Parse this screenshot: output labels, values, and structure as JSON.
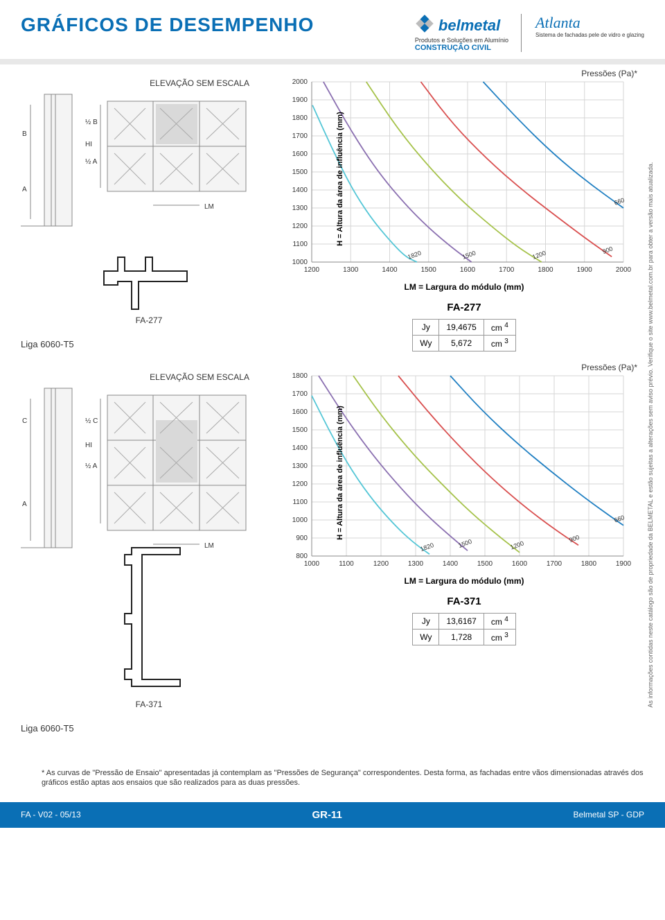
{
  "header": {
    "title": "GRÁFICOS DE DESEMPENHO",
    "belmetal": {
      "main": "belmetal",
      "sub1": "Produtos e Soluções em Alumínio",
      "sub2": "CONSTRUÇÃO CIVIL"
    },
    "atlanta": {
      "main": "Atlanta",
      "sub": "Sistema de fachadas pele de vidro e glazing"
    }
  },
  "colors": {
    "brand": "#0a6fb5",
    "grid": "#d5d5d5",
    "axis_text": "#333333",
    "curves": {
      "c1820": "#54c6d6",
      "c1500": "#8a6fb0",
      "c1200": "#a5c249",
      "c900": "#d94f4f",
      "c660": "#1f7fc2"
    }
  },
  "liga_label": "Liga 6060-T5",
  "elev_label": "ELEVAÇÃO SEM ESCALA",
  "dim_labels": {
    "A": "A",
    "B": "B",
    "C": "C",
    "halfA": "½ A",
    "halfB": "½ B",
    "halfC": "½ C",
    "HI": "HI",
    "LM": "LM"
  },
  "section1": {
    "profile_code": "FA-277",
    "chart": {
      "title_y": "H = Altura da área de influência (mm)",
      "title_x": "LM = Largura do módulo (mm)",
      "pressoes": "Pressões (Pa)*",
      "x": {
        "min": 1200,
        "max": 2000,
        "step": 100
      },
      "y": {
        "min": 1000,
        "max": 2000,
        "step": 100
      },
      "curves": [
        {
          "label": "1820",
          "color_key": "c1820",
          "segments": [
            [
              1202,
              1870
            ],
            [
              1250,
              1640
            ],
            [
              1300,
              1420
            ],
            [
              1350,
              1250
            ],
            [
              1400,
              1120
            ],
            [
              1440,
              1030
            ],
            [
              1470,
              1000
            ]
          ]
        },
        {
          "label": "1500",
          "color_key": "c1500",
          "segments": [
            [
              1230,
              2000
            ],
            [
              1300,
              1730
            ],
            [
              1370,
              1500
            ],
            [
              1440,
              1320
            ],
            [
              1500,
              1190
            ],
            [
              1560,
              1080
            ],
            [
              1610,
              1000
            ]
          ]
        },
        {
          "label": "1200",
          "color_key": "c1200",
          "segments": [
            [
              1340,
              2000
            ],
            [
              1420,
              1740
            ],
            [
              1500,
              1530
            ],
            [
              1580,
              1350
            ],
            [
              1660,
              1200
            ],
            [
              1730,
              1080
            ],
            [
              1790,
              1000
            ]
          ]
        },
        {
          "label": "900",
          "color_key": "c900",
          "segments": [
            [
              1480,
              2000
            ],
            [
              1560,
              1770
            ],
            [
              1650,
              1570
            ],
            [
              1740,
              1400
            ],
            [
              1830,
              1250
            ],
            [
              1910,
              1120
            ],
            [
              1970,
              1030
            ]
          ]
        },
        {
          "label": "660",
          "color_key": "c660",
          "segments": [
            [
              1640,
              2000
            ],
            [
              1730,
              1790
            ],
            [
              1820,
              1600
            ],
            [
              1910,
              1440
            ],
            [
              2000,
              1300
            ]
          ]
        }
      ]
    },
    "props": {
      "title": "FA-277",
      "rows": [
        {
          "k": "Jy",
          "v": "19,4675",
          "u": "cm",
          "exp": "4"
        },
        {
          "k": "Wy",
          "v": "5,672",
          "u": "cm",
          "exp": "3"
        }
      ]
    }
  },
  "section2": {
    "profile_code": "FA-371",
    "chart": {
      "title_y": "H = Altura da área de influência (mm)",
      "title_x": "LM = Largura do módulo (mm)",
      "pressoes": "Pressões (Pa)*",
      "x": {
        "min": 1000,
        "max": 1900,
        "step": 100
      },
      "y": {
        "min": 800,
        "max": 1800,
        "step": 100
      },
      "curves": [
        {
          "label": "1820",
          "color_key": "c1820",
          "segments": [
            [
              1000,
              1690
            ],
            [
              1060,
              1460
            ],
            [
              1120,
              1260
            ],
            [
              1180,
              1100
            ],
            [
              1240,
              970
            ],
            [
              1290,
              880
            ],
            [
              1340,
              810
            ]
          ]
        },
        {
          "label": "1500",
          "color_key": "c1500",
          "segments": [
            [
              1020,
              1800
            ],
            [
              1100,
              1560
            ],
            [
              1180,
              1350
            ],
            [
              1260,
              1170
            ],
            [
              1330,
              1030
            ],
            [
              1400,
              910
            ],
            [
              1450,
              830
            ]
          ]
        },
        {
          "label": "1200",
          "color_key": "c1200",
          "segments": [
            [
              1120,
              1800
            ],
            [
              1200,
              1580
            ],
            [
              1290,
              1370
            ],
            [
              1380,
              1190
            ],
            [
              1460,
              1040
            ],
            [
              1540,
              910
            ],
            [
              1600,
              820
            ]
          ]
        },
        {
          "label": "900",
          "color_key": "c900",
          "segments": [
            [
              1250,
              1800
            ],
            [
              1340,
              1590
            ],
            [
              1430,
              1400
            ],
            [
              1520,
              1230
            ],
            [
              1610,
              1080
            ],
            [
              1700,
              950
            ],
            [
              1770,
              860
            ]
          ]
        },
        {
          "label": "660",
          "color_key": "c660",
          "segments": [
            [
              1400,
              1800
            ],
            [
              1490,
              1610
            ],
            [
              1590,
              1430
            ],
            [
              1690,
              1270
            ],
            [
              1790,
              1120
            ],
            [
              1870,
              1010
            ],
            [
              1900,
              970
            ]
          ]
        }
      ]
    },
    "props": {
      "title": "FA-371",
      "rows": [
        {
          "k": "Jy",
          "v": "13,6167",
          "u": "cm",
          "exp": "4"
        },
        {
          "k": "Wy",
          "v": "1,728",
          "u": "cm",
          "exp": "3"
        }
      ]
    }
  },
  "footnote": "* As curvas de \"Pressão de Ensaio\" apresentadas já contemplam as \"Pressões de Segurança\" correspondentes. Desta forma, as fachadas entre vãos dimensionadas através dos gráficos estão aptas aos ensaios que são realizados para as duas pressões.",
  "side_note": "As informações contidas neste catálogo são de propriedade da BELMETAL e estão sujeitas a alterações sem aviso prévio. Verifique o site www.belmetal.com.br para obter a versão mais atualizada.",
  "footer": {
    "left": "FA - V02 - 05/13",
    "center": "GR-11",
    "right": "Belmetal SP -  GDP"
  }
}
